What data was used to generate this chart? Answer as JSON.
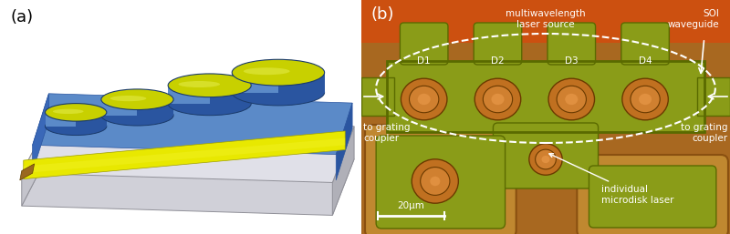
{
  "figsize": [
    8.0,
    2.57
  ],
  "dpi": 100,
  "panel_a_label": "(a)",
  "panel_b_label": "(b)",
  "panel_b_annotations": {
    "multiwavelength_laser_source": "multiwavelength\nlaser source",
    "SOI_waveguide": "SOI\nwaveguide",
    "disk_labels": [
      "D1",
      "D2",
      "D3",
      "D4"
    ],
    "to_grating_coupler_left": "to grating\ncoupler",
    "to_grating_coupler_right": "to grating\ncoupler",
    "individual_microdisk_laser": "individual\nmicrodisk laser",
    "scale_bar": "20μm"
  },
  "colors": {
    "bg_white": "#ffffff",
    "substrate_top": "#e0e0e8",
    "substrate_front": "#c4c4cc",
    "substrate_right": "#b0b0b8",
    "substrate_bottom": "#d0d0d8",
    "blue_top": "#5b8ac8",
    "blue_light": "#7aaad8",
    "blue_dark": "#2a55a0",
    "blue_front": "#3a68b8",
    "yellow": "#e8e800",
    "yellow_bright": "#f0f020",
    "yellow_dark": "#a0a000",
    "gold": "#9a6820",
    "disk_yellow": "#c8d000",
    "disk_highlight": "#e0e840",
    "b_bg_orange_top": "#cc5010",
    "b_bg_brown": "#a86820",
    "b_green_main": "#8a9c18",
    "b_green_light": "#a0b020",
    "b_green_dark": "#5a6a00",
    "b_orange_disk_outer": "#c07020",
    "b_orange_disk_inner": "#d08030",
    "b_orange_disk_center": "#e09040",
    "b_border_outer": "#c08030",
    "b_sq_outline": "#c08830"
  }
}
